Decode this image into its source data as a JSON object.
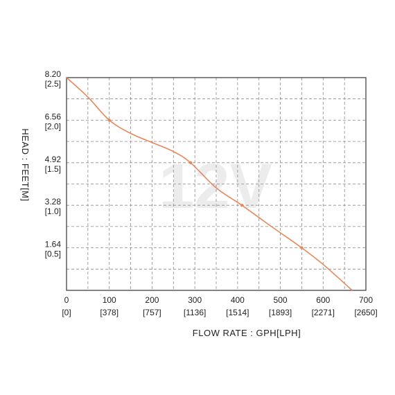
{
  "chart_data": {
    "type": "line",
    "watermark": "12V",
    "xlabel": "FLOW RATE : GPH[LPH]",
    "ylabel": "HEAD : FEET[M]",
    "xlim": [
      0,
      700
    ],
    "ylim": [
      0,
      8.2
    ],
    "x_ticks": [
      {
        "value": 0,
        "label": "0",
        "sublabel": "[0]"
      },
      {
        "value": 100,
        "label": "100",
        "sublabel": "[378]"
      },
      {
        "value": 200,
        "label": "200",
        "sublabel": "[757]"
      },
      {
        "value": 300,
        "label": "300",
        "sublabel": "[1136]"
      },
      {
        "value": 400,
        "label": "400",
        "sublabel": "[1514]"
      },
      {
        "value": 500,
        "label": "500",
        "sublabel": "[1893]"
      },
      {
        "value": 600,
        "label": "600",
        "sublabel": "[2271]"
      },
      {
        "value": 700,
        "label": "700",
        "sublabel": "[2650]"
      }
    ],
    "y_ticks": [
      {
        "value": 8.2,
        "label": "8.20",
        "sublabel": "[2.5]"
      },
      {
        "value": 6.56,
        "label": "6.56",
        "sublabel": "[2.0]"
      },
      {
        "value": 4.92,
        "label": "4.92",
        "sublabel": "[1.5]"
      },
      {
        "value": 3.28,
        "label": "3.28",
        "sublabel": "[1.0]"
      },
      {
        "value": 1.64,
        "label": "1.64",
        "sublabel": "[0.5]"
      }
    ],
    "x_grid": [
      50,
      100,
      150,
      200,
      250,
      300,
      350,
      400,
      450,
      500,
      550,
      600,
      650
    ],
    "y_grid": [
      0.82,
      1.64,
      2.46,
      3.28,
      4.1,
      4.92,
      5.74,
      6.56,
      7.38
    ],
    "grid": true,
    "series": [
      {
        "color": "#e8875a",
        "points": [
          {
            "x": 0,
            "y": 8.2
          },
          {
            "x": 50,
            "y": 7.45
          },
          {
            "x": 100,
            "y": 6.56
          },
          {
            "x": 150,
            "y": 6.05
          },
          {
            "x": 200,
            "y": 5.7
          },
          {
            "x": 250,
            "y": 5.35
          },
          {
            "x": 290,
            "y": 4.92
          },
          {
            "x": 350,
            "y": 3.95
          },
          {
            "x": 410,
            "y": 3.28
          },
          {
            "x": 480,
            "y": 2.45
          },
          {
            "x": 550,
            "y": 1.64
          },
          {
            "x": 600,
            "y": 1.0
          },
          {
            "x": 668,
            "y": 0.0
          }
        ],
        "markers": [
          100,
          290,
          410,
          550
        ]
      }
    ]
  }
}
